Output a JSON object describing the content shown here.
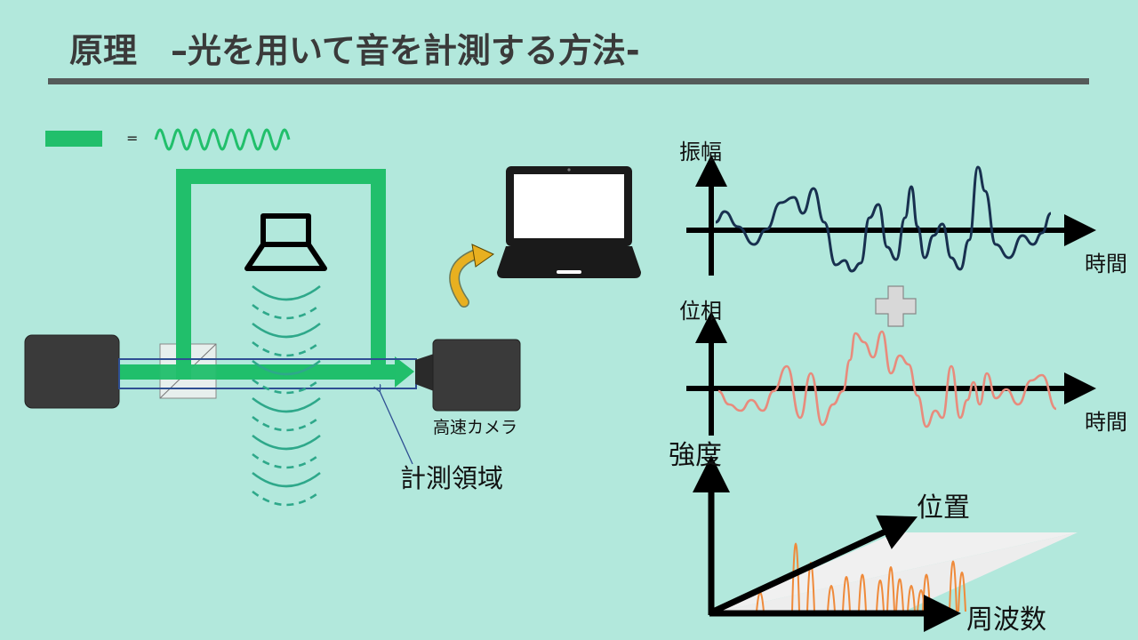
{
  "title": "原理　–光を用いて音を計測する方法-",
  "legend": {
    "equals": "="
  },
  "labels": {
    "camera": "高速カメラ",
    "measurement_area": "計測領域"
  },
  "graphs": {
    "amplitude": {
      "ylabel": "振幅",
      "xlabel": "時間"
    },
    "phase": {
      "ylabel": "位相",
      "xlabel": "時間"
    },
    "spectrum": {
      "ylabel": "強度",
      "position_label": "位置",
      "xlabel": "周波数"
    }
  },
  "colors": {
    "background": "#b2e8dc",
    "laser": "#21bf6b",
    "sound_wave": "#2ea88a",
    "amplitude_wave": "#18304f",
    "phase_wave": "#e88b7c",
    "spectrum_peaks": "#ef8a3a",
    "arrow_accent": "#e8b020",
    "roi_box": "#2f4f93"
  },
  "icons": [
    "speaker-icon",
    "laptop-icon",
    "plus-icon",
    "camera-icon",
    "light-source-icon",
    "beam-splitter-icon"
  ]
}
